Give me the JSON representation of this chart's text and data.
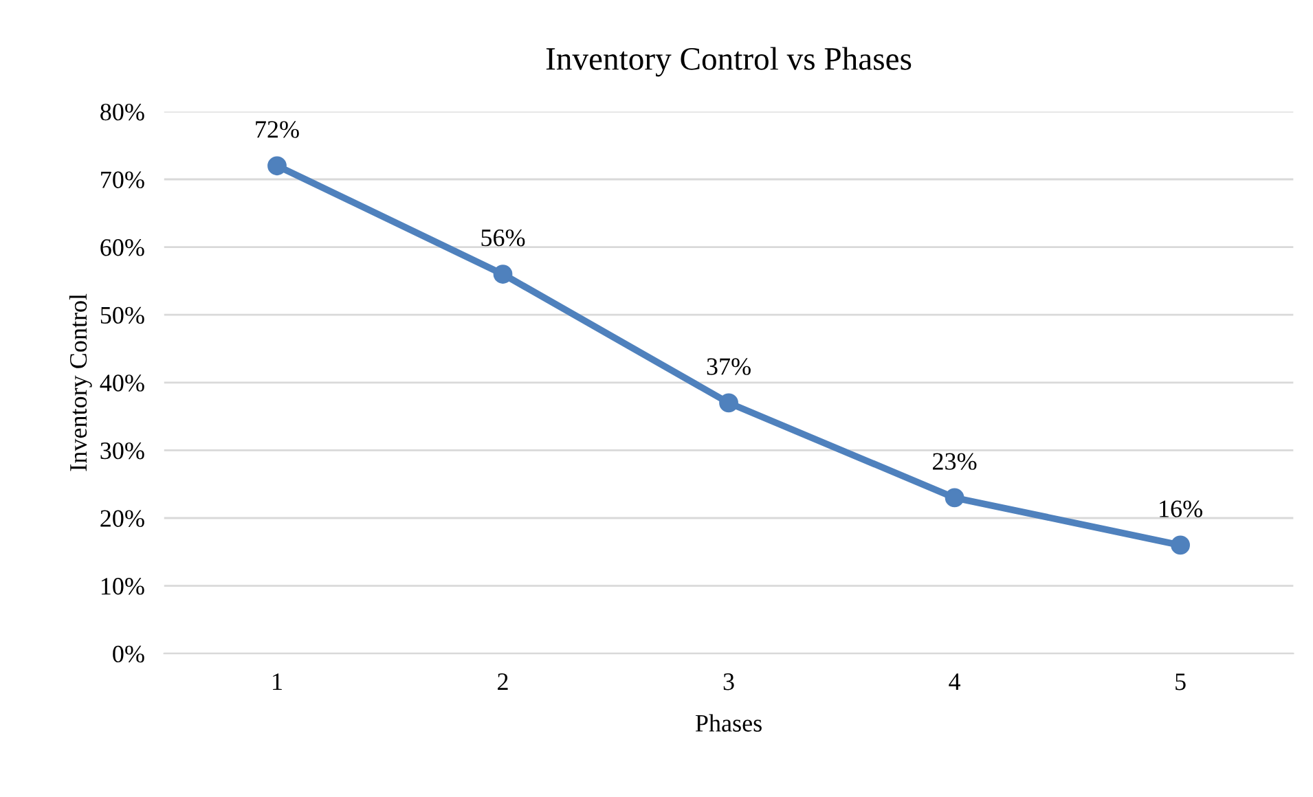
{
  "chart_data": {
    "type": "line",
    "title": "Inventory Control vs Phases",
    "xlabel": "Phases",
    "ylabel": "Inventory Control",
    "categories": [
      "1",
      "2",
      "3",
      "4",
      "5"
    ],
    "series": [
      {
        "color": "#4f81bd",
        "values": [
          72,
          56,
          37,
          23,
          16
        ],
        "value_labels": [
          "72%",
          "56%",
          "37%",
          "23%",
          "16%"
        ]
      }
    ],
    "ylim": [
      0,
      80
    ],
    "yticks": [
      {
        "value": 0,
        "label": "0%"
      },
      {
        "value": 10,
        "label": "10%"
      },
      {
        "value": 20,
        "label": "20%"
      },
      {
        "value": 30,
        "label": "30%"
      },
      {
        "value": 40,
        "label": "40%"
      },
      {
        "value": 50,
        "label": "50%"
      },
      {
        "value": 60,
        "label": "60%"
      },
      {
        "value": 70,
        "label": "70%"
      },
      {
        "value": 80,
        "label": "80%"
      }
    ],
    "grid": "y",
    "marker": "circle",
    "line_style": "solid",
    "legend": false
  }
}
